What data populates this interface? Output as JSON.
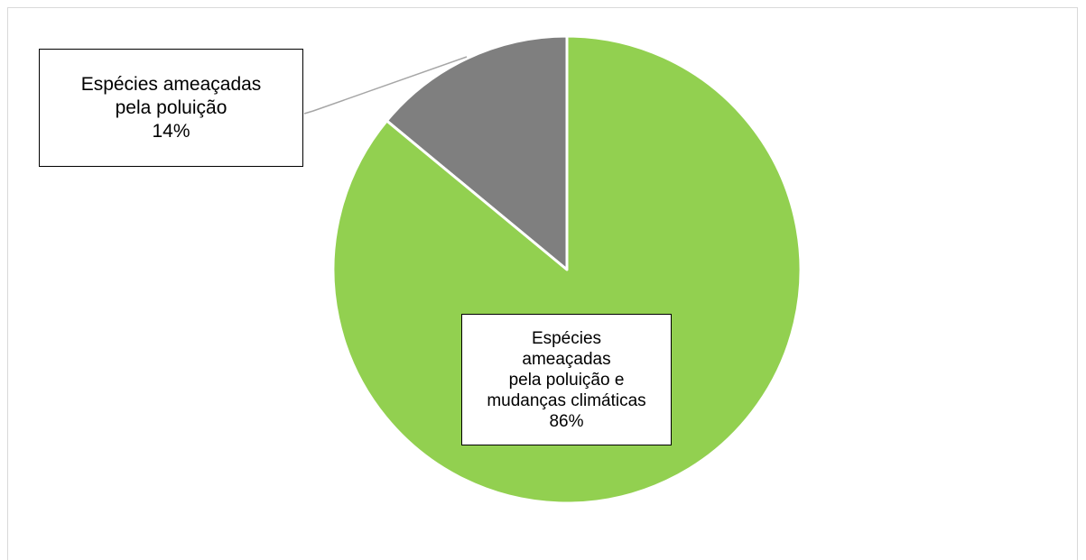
{
  "chart_data": {
    "type": "pie",
    "title": "",
    "slices": [
      {
        "label_lines": [
          "Espécies ameaçadas",
          "pela poluição"
        ],
        "percent_label": "14%",
        "value": 14,
        "color": "#7f7f7f"
      },
      {
        "label_lines": [
          "Espécies",
          "ameaçadas",
          "pela poluição e",
          "mudanças climáticas"
        ],
        "percent_label": "86%",
        "value": 86,
        "color": "#92d050"
      }
    ],
    "start_angle": "12 o'clock",
    "direction": "counterclockwise",
    "legend": "none",
    "slice_border_color": "#ffffff",
    "leader_line_color": "#a6a6a6"
  }
}
